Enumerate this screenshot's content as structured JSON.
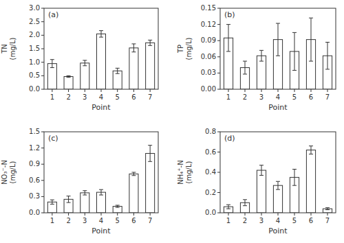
{
  "chart_data": [
    {
      "type": "bar",
      "annotations": [
        "(a)"
      ],
      "xlabel": "Point",
      "ylabel": "TN\n(mg/L)",
      "categories": [
        "1",
        "2",
        "3",
        "4",
        "5",
        "6",
        "7"
      ],
      "values": [
        0.95,
        0.47,
        0.97,
        2.05,
        0.68,
        1.53,
        1.72
      ],
      "errors": [
        0.15,
        0.03,
        0.1,
        0.12,
        0.1,
        0.15,
        0.1
      ],
      "color": "#ffffff",
      "ylim": [
        0.0,
        3.0
      ],
      "yticks": [
        {
          "value": 0.0,
          "label": "0.0"
        },
        0.5,
        {
          "value": 1.0,
          "label": "1.0"
        },
        1.5,
        {
          "value": 2.0,
          "label": "2.0"
        },
        2.5,
        {
          "value": 3.0,
          "label": "3.0"
        }
      ],
      "grid": false
    },
    {
      "type": "bar",
      "annotations": [
        "(b)"
      ],
      "xlabel": "Point",
      "ylabel": "TP\n(mg/L)",
      "categories": [
        "1",
        "2",
        "3",
        "4",
        "5",
        "6",
        "7"
      ],
      "values": [
        0.095,
        0.04,
        0.062,
        0.092,
        0.07,
        0.092,
        0.062
      ],
      "errors": [
        0.025,
        0.012,
        0.01,
        0.03,
        0.035,
        0.04,
        0.025
      ],
      "color": "#ffffff",
      "ylim": [
        0.0,
        0.15
      ],
      "yticks": [
        {
          "value": 0.0,
          "label": "0.00"
        },
        0.03,
        0.06,
        0.09,
        0.12,
        0.15
      ],
      "grid": false
    },
    {
      "type": "bar",
      "annotations": [
        "(c)"
      ],
      "xlabel": "Point",
      "ylabel": "NO₃⁻-N\n(mg/L)",
      "categories": [
        "1",
        "2",
        "3",
        "4",
        "5",
        "6",
        "7"
      ],
      "values": [
        0.2,
        0.25,
        0.37,
        0.38,
        0.12,
        0.72,
        1.1
      ],
      "errors": [
        0.04,
        0.06,
        0.04,
        0.05,
        0.02,
        0.03,
        0.15
      ],
      "color": "#ffffff",
      "ylim": [
        0.0,
        1.5
      ],
      "yticks": [
        {
          "value": 0.0,
          "label": "0.0"
        },
        0.3,
        0.6,
        0.9,
        1.2,
        1.5
      ],
      "grid": false
    },
    {
      "type": "bar",
      "annotations": [
        "(d)"
      ],
      "xlabel": "Point",
      "ylabel": "NH₄⁺-N\n(mg/L)",
      "categories": [
        "1",
        "2",
        "3",
        "4",
        "5",
        "6",
        "7"
      ],
      "values": [
        0.06,
        0.1,
        0.42,
        0.27,
        0.35,
        0.62,
        0.04
      ],
      "errors": [
        0.02,
        0.03,
        0.05,
        0.04,
        0.08,
        0.04,
        0.01
      ],
      "color": "#ffffff",
      "ylim": [
        0.0,
        0.8
      ],
      "yticks": [
        {
          "value": 0.0,
          "label": "0.0"
        },
        0.2,
        0.4,
        0.6,
        0.8
      ],
      "grid": false
    }
  ]
}
